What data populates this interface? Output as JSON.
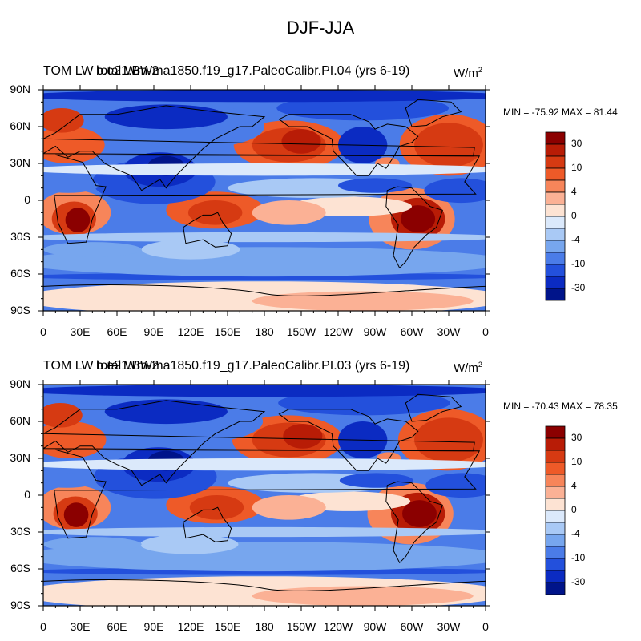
{
  "figure": {
    "title": "DJF-JJA"
  },
  "panels": [
    {
      "case_name": "b.e21.BWma1850.f19_g17.PaleoCalibr.PI.04 (yrs 6-19)",
      "variable_label": "TOM LW total Wm-2",
      "units_base": "W/m",
      "units_exp": "2",
      "min_max": "MIN = -75.92 MAX =  81.44"
    },
    {
      "case_name": "b.e21.BWma1850.f19_g17.PaleoCalibr.PI.03 (yrs 6-19)",
      "variable_label": "TOM LW total Wm-2",
      "units_base": "W/m",
      "units_exp": "2",
      "min_max": "MIN = -70.43 MAX =  78.35"
    }
  ],
  "axes": {
    "lat_labels": [
      "90N",
      "60N",
      "30N",
      "0",
      "30S",
      "60S",
      "90S"
    ],
    "lon_labels": [
      "0",
      "30E",
      "60E",
      "90E",
      "120E",
      "150E",
      "180",
      "150W",
      "120W",
      "90W",
      "60W",
      "30W",
      "0"
    ]
  },
  "colorbar": {
    "colors": [
      "#8b0000",
      "#b81c06",
      "#d63a12",
      "#ee5a28",
      "#f7855a",
      "#fbb195",
      "#fde3d3",
      "#dbe9fb",
      "#a9c9f5",
      "#77a6ee",
      "#4b7ce8",
      "#2350dc",
      "#0b2bc2",
      "#00148a"
    ],
    "labels": [
      "30",
      "10",
      "4",
      "0",
      "-4",
      "-10",
      "-30"
    ]
  },
  "chart_data": [
    {
      "type": "heatmap",
      "title": "b.e21.BWma1850.f19_g17.PaleoCalibr.PI.04 (yrs 6-19)",
      "variable": "TOM LW total",
      "units": "W/m2",
      "season_difference": "DJF-JJA",
      "min": -75.92,
      "max": 81.44,
      "xlim": [
        0,
        360
      ],
      "ylim": [
        -90,
        90
      ],
      "xlabel": "",
      "ylabel": "",
      "contour_levels": [
        -30,
        -10,
        -4,
        0,
        4,
        10,
        30
      ]
    },
    {
      "type": "heatmap",
      "title": "b.e21.BWma1850.f19_g17.PaleoCalibr.PI.03 (yrs 6-19)",
      "variable": "TOM LW total",
      "units": "W/m2",
      "season_difference": "DJF-JJA",
      "min": -70.43,
      "max": 78.35,
      "xlim": [
        0,
        360
      ],
      "ylim": [
        -90,
        90
      ],
      "xlabel": "",
      "ylabel": "",
      "contour_levels": [
        -30,
        -10,
        -4,
        0,
        4,
        10,
        30
      ]
    }
  ]
}
